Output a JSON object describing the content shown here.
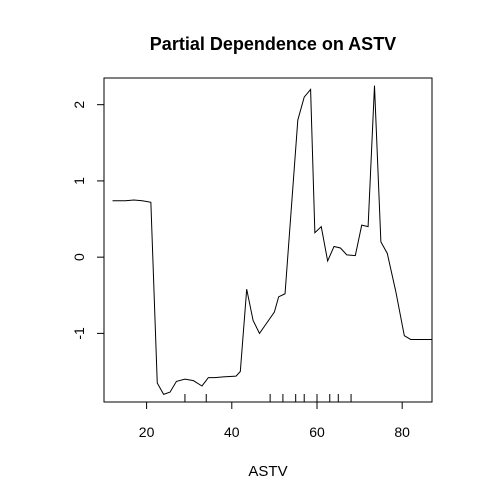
{
  "chart_data": {
    "type": "line",
    "title": "Partial Dependence on ASTV",
    "xlabel": "ASTV",
    "ylabel": "",
    "xlim": [
      10,
      87
    ],
    "ylim": [
      -1.9,
      2.35
    ],
    "xticks": [
      20,
      40,
      60,
      80
    ],
    "yticks": [
      -1,
      0,
      1,
      2
    ],
    "grid": false,
    "legend": "none",
    "line_color": "#000000",
    "rug": [
      29,
      34,
      49,
      52,
      55,
      57,
      60,
      63,
      65,
      68
    ],
    "series": [
      {
        "values": [
          {
            "x": 12,
            "y": 0.74
          },
          {
            "x": 15,
            "y": 0.74
          },
          {
            "x": 17,
            "y": 0.75
          },
          {
            "x": 19,
            "y": 0.74
          },
          {
            "x": 21,
            "y": 0.72
          },
          {
            "x": 22.5,
            "y": -1.65
          },
          {
            "x": 24,
            "y": -1.8
          },
          {
            "x": 25.5,
            "y": -1.77
          },
          {
            "x": 27,
            "y": -1.63
          },
          {
            "x": 29,
            "y": -1.6
          },
          {
            "x": 31,
            "y": -1.62
          },
          {
            "x": 33,
            "y": -1.69
          },
          {
            "x": 34.5,
            "y": -1.58
          },
          {
            "x": 36,
            "y": -1.58
          },
          {
            "x": 38,
            "y": -1.57
          },
          {
            "x": 41,
            "y": -1.56
          },
          {
            "x": 42,
            "y": -1.5
          },
          {
            "x": 43.5,
            "y": -0.42
          },
          {
            "x": 45,
            "y": -0.83
          },
          {
            "x": 46.5,
            "y": -1.0
          },
          {
            "x": 48,
            "y": -0.88
          },
          {
            "x": 50,
            "y": -0.72
          },
          {
            "x": 51,
            "y": -0.52
          },
          {
            "x": 52.5,
            "y": -0.48
          },
          {
            "x": 55.5,
            "y": 1.8
          },
          {
            "x": 57,
            "y": 2.1
          },
          {
            "x": 58.5,
            "y": 2.2
          },
          {
            "x": 59.5,
            "y": 0.32
          },
          {
            "x": 61,
            "y": 0.4
          },
          {
            "x": 62.5,
            "y": -0.05
          },
          {
            "x": 64,
            "y": 0.14
          },
          {
            "x": 65.5,
            "y": 0.12
          },
          {
            "x": 67,
            "y": 0.03
          },
          {
            "x": 69,
            "y": 0.02
          },
          {
            "x": 70.5,
            "y": 0.42
          },
          {
            "x": 72,
            "y": 0.4
          },
          {
            "x": 73.5,
            "y": 2.25
          },
          {
            "x": 75,
            "y": 0.2
          },
          {
            "x": 76.5,
            "y": 0.05
          },
          {
            "x": 78.5,
            "y": -0.45
          },
          {
            "x": 80.5,
            "y": -1.03
          },
          {
            "x": 82,
            "y": -1.08
          },
          {
            "x": 84,
            "y": -1.08
          },
          {
            "x": 87,
            "y": -1.08
          }
        ]
      }
    ]
  }
}
